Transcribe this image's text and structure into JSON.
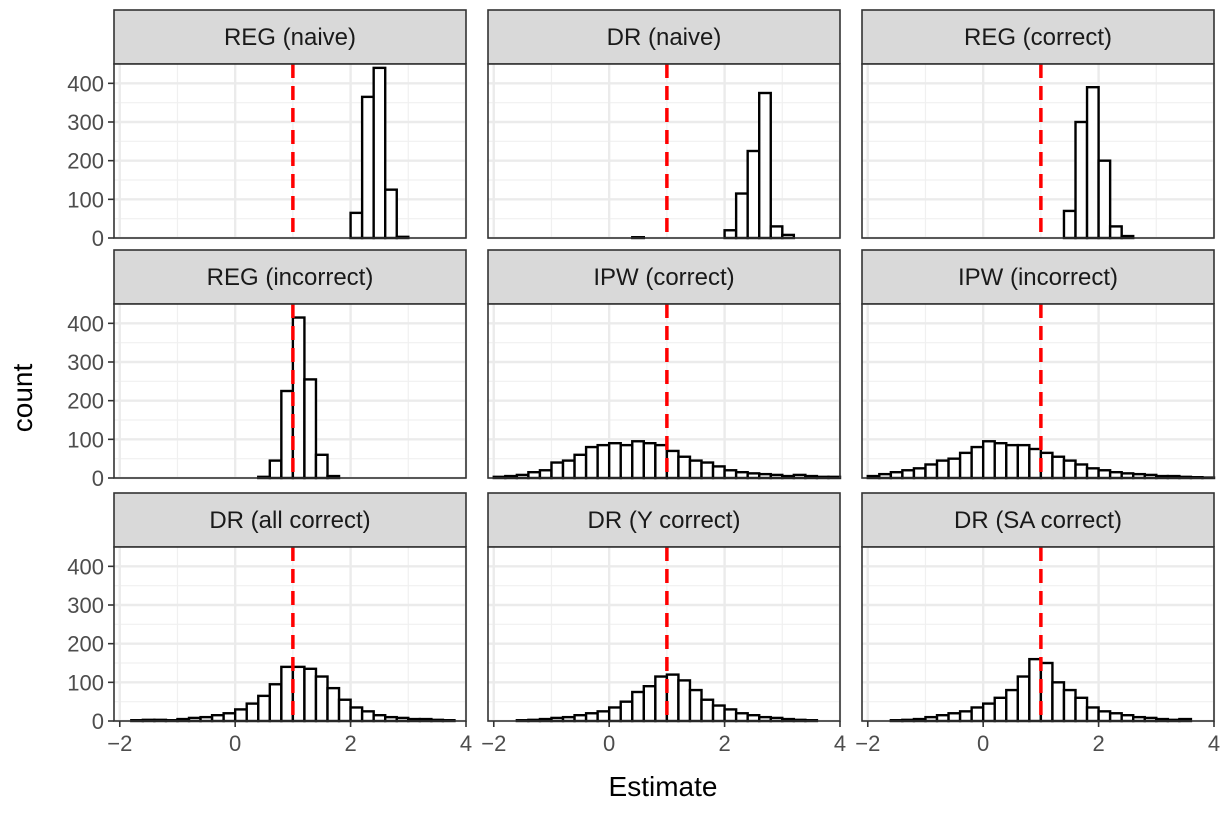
{
  "chart_data": {
    "type": "bar",
    "subtype": "faceted-histogram",
    "xlabel": "Estimate",
    "ylabel": "count",
    "xlim": [
      -2.1,
      4.0
    ],
    "ylim": [
      0,
      450
    ],
    "xticks": [
      -2,
      0,
      2,
      4
    ],
    "yticks": [
      0,
      100,
      200,
      300,
      400
    ],
    "reference_line": {
      "x": 1,
      "color": "#ff0000",
      "style": "dashed"
    },
    "bins": {
      "start": -2,
      "width": 0.2,
      "count": 30
    },
    "grid": true,
    "facets": [
      {
        "label": "REG (naive)",
        "counts": [
          0,
          0,
          0,
          0,
          0,
          0,
          0,
          0,
          0,
          0,
          0,
          0,
          0,
          0,
          0,
          0,
          0,
          0,
          0,
          0,
          65,
          365,
          440,
          125,
          3,
          0,
          0,
          0,
          0,
          0
        ]
      },
      {
        "label": "DR (naive)",
        "counts": [
          0,
          0,
          0,
          0,
          0,
          0,
          0,
          0,
          0,
          0,
          0,
          0,
          2,
          0,
          0,
          0,
          0,
          0,
          0,
          0,
          20,
          115,
          225,
          375,
          30,
          8,
          0,
          0,
          0,
          0
        ]
      },
      {
        "label": "REG (correct)",
        "counts": [
          0,
          0,
          0,
          0,
          0,
          0,
          0,
          0,
          0,
          0,
          0,
          0,
          0,
          0,
          0,
          0,
          0,
          70,
          300,
          390,
          200,
          30,
          5,
          0,
          0,
          0,
          0,
          0,
          0,
          0
        ]
      },
      {
        "label": "REG (incorrect)",
        "counts": [
          0,
          0,
          0,
          0,
          0,
          0,
          0,
          0,
          0,
          0,
          0,
          0,
          3,
          45,
          225,
          415,
          255,
          60,
          5,
          0,
          0,
          0,
          0,
          0,
          0,
          0,
          0,
          0,
          0,
          0
        ]
      },
      {
        "label": "IPW (correct)",
        "counts": [
          3,
          5,
          8,
          15,
          20,
          40,
          45,
          60,
          80,
          85,
          90,
          85,
          95,
          90,
          85,
          70,
          55,
          45,
          40,
          30,
          20,
          15,
          12,
          10,
          8,
          5,
          8,
          5,
          3,
          3
        ]
      },
      {
        "label": "IPW (incorrect)",
        "counts": [
          5,
          10,
          15,
          20,
          25,
          35,
          45,
          50,
          65,
          80,
          95,
          90,
          85,
          85,
          75,
          65,
          55,
          45,
          35,
          25,
          20,
          15,
          12,
          10,
          8,
          5,
          5,
          3,
          2,
          1
        ]
      },
      {
        "label": "DR (all correct)",
        "counts": [
          0,
          2,
          3,
          3,
          2,
          5,
          8,
          10,
          15,
          20,
          30,
          45,
          65,
          95,
          140,
          140,
          135,
          115,
          85,
          55,
          35,
          25,
          15,
          10,
          8,
          5,
          5,
          3,
          2,
          0
        ]
      },
      {
        "label": "DR (Y correct)",
        "counts": [
          0,
          0,
          2,
          3,
          5,
          8,
          10,
          15,
          20,
          25,
          35,
          50,
          75,
          90,
          115,
          120,
          105,
          80,
          55,
          40,
          30,
          20,
          15,
          10,
          8,
          5,
          3,
          2,
          0,
          0
        ]
      },
      {
        "label": "DR (SA correct)",
        "counts": [
          0,
          0,
          2,
          3,
          5,
          10,
          15,
          20,
          25,
          35,
          45,
          60,
          80,
          115,
          160,
          150,
          100,
          80,
          60,
          35,
          25,
          20,
          15,
          10,
          8,
          5,
          3,
          5,
          0,
          0
        ]
      }
    ]
  }
}
